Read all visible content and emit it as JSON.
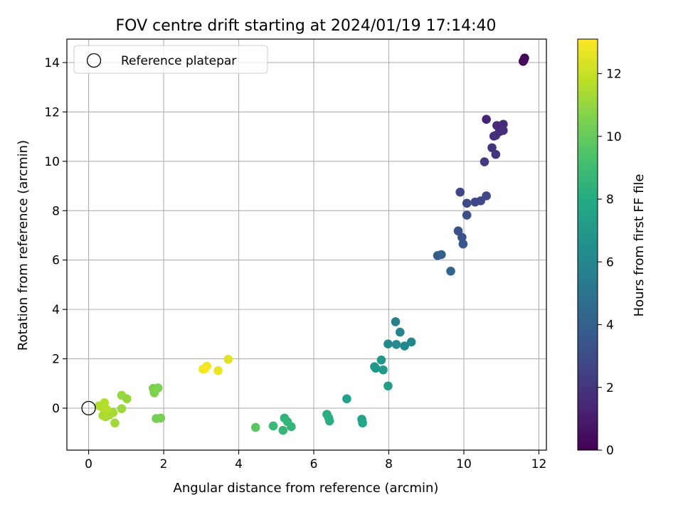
{
  "chart_data": {
    "type": "scatter",
    "title": "FOV centre drift starting at 2024/01/19 17:14:40",
    "xlabel": "Angular distance from reference (arcmin)",
    "ylabel": "Rotation from reference (arcmin)",
    "xlim": [
      -0.58,
      12.2
    ],
    "ylim": [
      -1.7,
      14.95
    ],
    "xticks": [
      0,
      2,
      4,
      6,
      8,
      10,
      12
    ],
    "yticks": [
      0,
      2,
      4,
      6,
      8,
      10,
      12,
      14
    ],
    "grid": true,
    "legend": {
      "entries": [
        "Reference platepar"
      ],
      "placement": "top-left"
    },
    "colorbar": {
      "label": "Hours from first FF file",
      "colormap": "viridis",
      "range": [
        0,
        13.1
      ],
      "ticks": [
        0,
        2,
        4,
        6,
        8,
        10,
        12
      ]
    },
    "reference_point": {
      "x": 0,
      "y": 0
    },
    "points": [
      {
        "x": 11.62,
        "y": 14.18,
        "h": 0.05
      },
      {
        "x": 11.58,
        "y": 14.05,
        "h": 0.15
      },
      {
        "x": 11.6,
        "y": 14.1,
        "h": 0.25
      },
      {
        "x": 10.6,
        "y": 11.7,
        "h": 1.3
      },
      {
        "x": 10.88,
        "y": 11.45,
        "h": 1.5
      },
      {
        "x": 11.05,
        "y": 11.5,
        "h": 1.55
      },
      {
        "x": 10.95,
        "y": 11.2,
        "h": 1.65
      },
      {
        "x": 11.05,
        "y": 11.25,
        "h": 1.7
      },
      {
        "x": 10.85,
        "y": 11.05,
        "h": 1.75
      },
      {
        "x": 10.8,
        "y": 11.02,
        "h": 1.8
      },
      {
        "x": 10.75,
        "y": 10.55,
        "h": 1.9
      },
      {
        "x": 10.85,
        "y": 10.28,
        "h": 2.0
      },
      {
        "x": 10.55,
        "y": 9.98,
        "h": 2.2
      },
      {
        "x": 9.9,
        "y": 8.75,
        "h": 2.6
      },
      {
        "x": 10.6,
        "y": 8.6,
        "h": 2.7
      },
      {
        "x": 10.45,
        "y": 8.4,
        "h": 2.8
      },
      {
        "x": 10.3,
        "y": 8.35,
        "h": 2.85
      },
      {
        "x": 10.08,
        "y": 8.3,
        "h": 2.9
      },
      {
        "x": 10.08,
        "y": 7.82,
        "h": 3.1
      },
      {
        "x": 9.85,
        "y": 7.18,
        "h": 3.3
      },
      {
        "x": 9.95,
        "y": 6.92,
        "h": 3.4
      },
      {
        "x": 9.98,
        "y": 6.65,
        "h": 3.5
      },
      {
        "x": 9.3,
        "y": 6.18,
        "h": 3.9
      },
      {
        "x": 9.4,
        "y": 6.22,
        "h": 3.95
      },
      {
        "x": 9.65,
        "y": 5.55,
        "h": 4.3
      },
      {
        "x": 8.18,
        "y": 3.5,
        "h": 5.7
      },
      {
        "x": 8.3,
        "y": 3.08,
        "h": 5.85
      },
      {
        "x": 8.6,
        "y": 2.68,
        "h": 6.0
      },
      {
        "x": 8.42,
        "y": 2.52,
        "h": 6.05
      },
      {
        "x": 8.2,
        "y": 2.58,
        "h": 6.1
      },
      {
        "x": 7.98,
        "y": 2.6,
        "h": 6.15
      },
      {
        "x": 7.8,
        "y": 1.95,
        "h": 6.9
      },
      {
        "x": 7.62,
        "y": 1.68,
        "h": 6.95
      },
      {
        "x": 7.65,
        "y": 1.62,
        "h": 7.0
      },
      {
        "x": 7.85,
        "y": 1.55,
        "h": 7.05
      },
      {
        "x": 7.98,
        "y": 0.9,
        "h": 7.3
      },
      {
        "x": 6.88,
        "y": 0.38,
        "h": 7.5
      },
      {
        "x": 7.28,
        "y": -0.45,
        "h": 7.7
      },
      {
        "x": 7.3,
        "y": -0.6,
        "h": 7.75
      },
      {
        "x": 6.35,
        "y": -0.25,
        "h": 8.1
      },
      {
        "x": 6.4,
        "y": -0.4,
        "h": 8.15
      },
      {
        "x": 6.42,
        "y": -0.52,
        "h": 8.2
      },
      {
        "x": 5.22,
        "y": -0.4,
        "h": 8.5
      },
      {
        "x": 5.3,
        "y": -0.55,
        "h": 8.55
      },
      {
        "x": 5.4,
        "y": -0.75,
        "h": 8.6
      },
      {
        "x": 5.18,
        "y": -0.9,
        "h": 8.65
      },
      {
        "x": 4.92,
        "y": -0.72,
        "h": 8.8
      },
      {
        "x": 4.45,
        "y": -0.78,
        "h": 9.7
      },
      {
        "x": 1.8,
        "y": -0.42,
        "h": 10.35
      },
      {
        "x": 1.92,
        "y": -0.4,
        "h": 10.4
      },
      {
        "x": 1.72,
        "y": 0.8,
        "h": 10.45
      },
      {
        "x": 1.85,
        "y": 0.82,
        "h": 10.5
      },
      {
        "x": 1.75,
        "y": 0.62,
        "h": 10.55
      },
      {
        "x": 0.88,
        "y": 0.52,
        "h": 11.0
      },
      {
        "x": 1.02,
        "y": 0.38,
        "h": 11.05
      },
      {
        "x": 0.88,
        "y": -0.02,
        "h": 11.1
      },
      {
        "x": 0.7,
        "y": -0.6,
        "h": 11.2
      },
      {
        "x": 0.65,
        "y": -0.18,
        "h": 11.3
      },
      {
        "x": 0.55,
        "y": -0.28,
        "h": 11.35
      },
      {
        "x": 0.45,
        "y": -0.35,
        "h": 11.4
      },
      {
        "x": 0.38,
        "y": -0.3,
        "h": 11.45
      },
      {
        "x": 0.28,
        "y": 0.1,
        "h": 11.5
      },
      {
        "x": 0.35,
        "y": 0.05,
        "h": 11.55
      },
      {
        "x": 0.42,
        "y": 0.22,
        "h": 11.6
      },
      {
        "x": 0.48,
        "y": -0.05,
        "h": 11.65
      },
      {
        "x": 3.72,
        "y": 1.98,
        "h": 12.5
      },
      {
        "x": 3.45,
        "y": 1.52,
        "h": 12.7
      },
      {
        "x": 3.05,
        "y": 1.58,
        "h": 12.8
      },
      {
        "x": 3.15,
        "y": 1.7,
        "h": 12.9
      },
      {
        "x": 3.1,
        "y": 1.6,
        "h": 13.0
      }
    ]
  }
}
